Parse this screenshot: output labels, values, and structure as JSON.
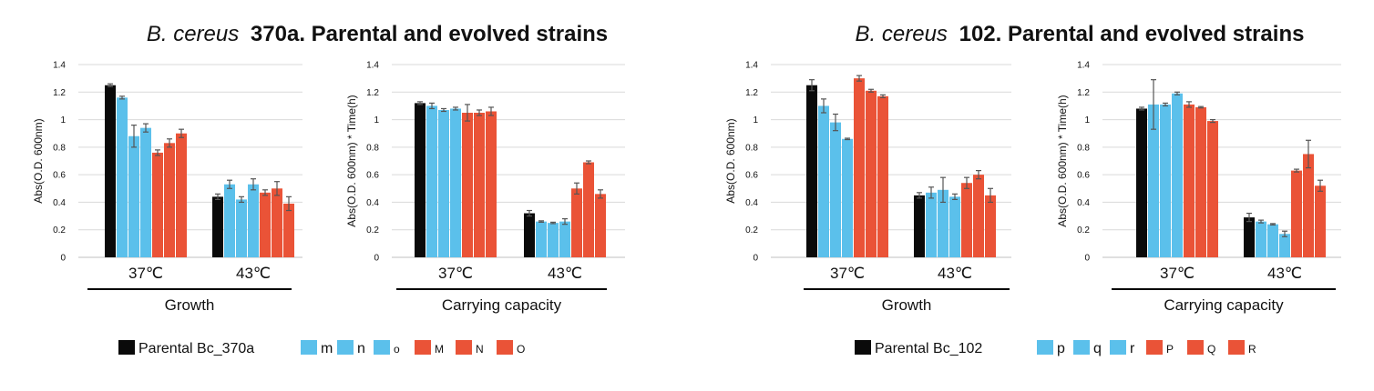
{
  "colors": {
    "parental": "#0a0a0a",
    "blue": "#5bc0eb",
    "red": "#ea5337",
    "grid": "#d9d9d9",
    "error": "#555555"
  },
  "panels": [
    {
      "title_italic": "B. cereus",
      "title_bold": "370a. Parental and evolved strains",
      "legend": [
        {
          "label": "Parental Bc_370a",
          "color": "parental",
          "small": false
        },
        {
          "label": "m",
          "color": "blue",
          "small": false
        },
        {
          "label": "n",
          "color": "blue",
          "small": false
        },
        {
          "label": "o",
          "color": "blue",
          "small": true
        },
        {
          "label": "M",
          "color": "red",
          "small": true
        },
        {
          "label": "N",
          "color": "red",
          "small": true
        },
        {
          "label": "O",
          "color": "red",
          "small": true
        }
      ]
    },
    {
      "title_italic": "B. cereus",
      "title_bold": "102. Parental and evolved strains",
      "legend": [
        {
          "label": "Parental Bc_102",
          "color": "parental",
          "small": false
        },
        {
          "label": "p",
          "color": "blue",
          "small": false
        },
        {
          "label": "q",
          "color": "blue",
          "small": false
        },
        {
          "label": "r",
          "color": "blue",
          "small": false
        },
        {
          "label": "P",
          "color": "red",
          "small": true
        },
        {
          "label": "Q",
          "color": "red",
          "small": true
        },
        {
          "label": "R",
          "color": "red",
          "small": true
        }
      ]
    }
  ],
  "chart_data": [
    {
      "type": "bar",
      "panel": 0,
      "group_label": "Growth",
      "ylabel": "Abs(O.D. 600nm)",
      "yticks": [
        "0",
        "0.2",
        "0.4",
        "0.6",
        "0.8",
        "1",
        "1.2",
        "1.4"
      ],
      "ylim": [
        0,
        1.4
      ],
      "categories": [
        "37℃",
        "43℃"
      ],
      "colors": [
        "parental",
        "blue",
        "blue",
        "blue",
        "red",
        "red",
        "red"
      ],
      "values": [
        [
          1.25,
          1.16,
          0.88,
          0.94,
          0.76,
          0.83,
          0.9
        ],
        [
          0.44,
          0.53,
          0.42,
          0.53,
          0.47,
          0.5,
          0.39
        ]
      ],
      "errors": [
        [
          0.01,
          0.01,
          0.08,
          0.03,
          0.02,
          0.03,
          0.03
        ],
        [
          0.02,
          0.03,
          0.02,
          0.04,
          0.02,
          0.05,
          0.05
        ]
      ]
    },
    {
      "type": "bar",
      "panel": 0,
      "group_label": "Carrying capacity",
      "ylabel": "Abs(O.D. 600nm) * Time(h)",
      "yticks": [
        "0",
        "0.2",
        "0.4",
        "0.6",
        "0.8",
        "1",
        "1.2",
        "1.4"
      ],
      "ylim": [
        0,
        1.4
      ],
      "categories": [
        "37℃",
        "43℃"
      ],
      "colors": [
        "parental",
        "blue",
        "blue",
        "blue",
        "red",
        "red",
        "red"
      ],
      "values": [
        [
          1.12,
          1.1,
          1.07,
          1.08,
          1.05,
          1.05,
          1.06
        ],
        [
          0.32,
          0.26,
          0.25,
          0.26,
          0.5,
          0.69,
          0.46
        ]
      ],
      "errors": [
        [
          0.01,
          0.02,
          0.01,
          0.01,
          0.06,
          0.02,
          0.03
        ],
        [
          0.02,
          0.005,
          0.005,
          0.02,
          0.04,
          0.01,
          0.03
        ]
      ]
    },
    {
      "type": "bar",
      "panel": 1,
      "group_label": "Growth",
      "ylabel": "Abs(O.D. 600nm)",
      "yticks": [
        "0",
        "0.2",
        "0.4",
        "0.6",
        "0.8",
        "1",
        "1.2",
        "1.4"
      ],
      "ylim": [
        0,
        1.4
      ],
      "categories": [
        "37℃",
        "43℃"
      ],
      "colors": [
        "parental",
        "blue",
        "blue",
        "blue",
        "red",
        "red",
        "red"
      ],
      "values": [
        [
          1.25,
          1.1,
          0.98,
          0.86,
          1.3,
          1.21,
          1.17
        ],
        [
          0.45,
          0.47,
          0.49,
          0.44,
          0.54,
          0.6,
          0.45
        ]
      ],
      "errors": [
        [
          0.04,
          0.05,
          0.06,
          0.005,
          0.02,
          0.01,
          0.01
        ],
        [
          0.02,
          0.04,
          0.09,
          0.02,
          0.04,
          0.03,
          0.05
        ]
      ]
    },
    {
      "type": "bar",
      "panel": 1,
      "group_label": "Carrying capacity",
      "ylabel": "Abs(O.D. 600nm) * Time(h)",
      "yticks": [
        "0",
        "0.2",
        "0.4",
        "0.6",
        "0.8",
        "1",
        "1.2",
        "1.4"
      ],
      "ylim": [
        0,
        1.4
      ],
      "categories": [
        "37℃",
        "43℃"
      ],
      "colors": [
        "parental",
        "blue",
        "blue",
        "blue",
        "red",
        "red",
        "red"
      ],
      "values": [
        [
          1.08,
          1.11,
          1.11,
          1.19,
          1.11,
          1.09,
          0.99
        ],
        [
          0.29,
          0.26,
          0.24,
          0.17,
          0.63,
          0.75,
          0.52
        ]
      ],
      "errors": [
        [
          0.01,
          0.18,
          0.01,
          0.01,
          0.02,
          0.005,
          0.01
        ],
        [
          0.03,
          0.01,
          0.005,
          0.02,
          0.01,
          0.1,
          0.04
        ]
      ]
    }
  ]
}
